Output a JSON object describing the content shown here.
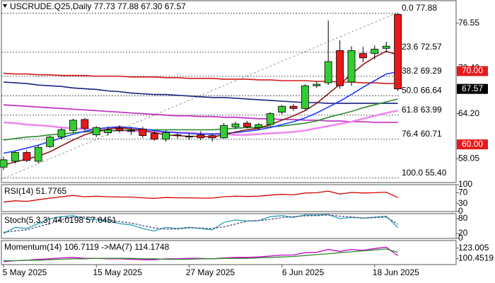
{
  "chart_data": [
    {
      "type": "candlestick",
      "title": "USCRUDE.Q25,Daily  77.73 77.88 67.30 67.57",
      "categories": [
        "5 May 2025",
        null,
        null,
        null,
        null,
        null,
        null,
        null,
        "15 May 2025",
        null,
        null,
        null,
        null,
        null,
        null,
        null,
        "27 May 2025",
        null,
        null,
        null,
        null,
        null,
        null,
        null,
        "6 Jun 2025",
        null,
        null,
        null,
        null,
        null,
        null,
        null,
        "18 Jun 2025",
        null,
        null
      ],
      "open": [
        56.9,
        57.7,
        58.9,
        57.7,
        59.7,
        61.0,
        61.9,
        63.4,
        61.3,
        61.6,
        62.2,
        61.8,
        62.1,
        61.5,
        60.7,
        61.3,
        61.0,
        61.3,
        61.2,
        60.9,
        62.4,
        62.9,
        62.3,
        62.7,
        64.4,
        65.2,
        64.9,
        68.0,
        68.4,
        72.8,
        68.5,
        72.4,
        72.4,
        73.1,
        77.73
      ],
      "high": [
        58.3,
        59.1,
        59.2,
        59.9,
        61.2,
        62.3,
        63.5,
        63.6,
        62.5,
        62.4,
        62.6,
        62.3,
        62.4,
        61.8,
        61.9,
        61.6,
        61.5,
        61.8,
        61.5,
        62.9,
        63.1,
        63.2,
        62.9,
        64.4,
        65.4,
        65.5,
        68.2,
        68.6,
        76.9,
        74.2,
        73.4,
        73.3,
        73.5,
        74.0,
        77.88
      ],
      "low": [
        56.5,
        57.4,
        57.6,
        57.4,
        59.5,
        60.7,
        61.6,
        61.9,
        61.0,
        61.2,
        61.6,
        61.3,
        60.9,
        60.5,
        60.4,
        60.8,
        60.6,
        60.6,
        60.4,
        60.8,
        62.1,
        62.2,
        62.0,
        62.5,
        64.1,
        64.6,
        64.7,
        67.7,
        68.1,
        67.6,
        68.0,
        71.2,
        71.6,
        72.6,
        67.3
      ],
      "close": [
        57.9,
        58.9,
        57.8,
        59.6,
        61.0,
        62.0,
        63.3,
        62.2,
        62.3,
        62.0,
        61.9,
        61.9,
        61.2,
        60.7,
        61.6,
        61.2,
        61.1,
        60.9,
        60.9,
        62.6,
        62.8,
        62.4,
        62.7,
        64.2,
        65.2,
        64.9,
        68.0,
        68.2,
        71.3,
        68.0,
        72.8,
        71.8,
        73.0,
        73.4,
        67.57
      ],
      "up_color": "#33cc33",
      "down_color": "#e8191b",
      "overlays": [
        {
          "color": "#d21a1a",
          "width": 1.6,
          "values": [
            69.7,
            69.6,
            69.6,
            69.5,
            69.5,
            69.4,
            69.4,
            69.4,
            69.3,
            69.3,
            69.3,
            69.2,
            69.2,
            69.2,
            69.1,
            69.1,
            69.0,
            69.0,
            69.0,
            68.9,
            68.9,
            68.9,
            68.8,
            68.8,
            68.7,
            68.7,
            68.7,
            68.6,
            68.6,
            68.5,
            68.5,
            68.4,
            68.4,
            68.3,
            68.3
          ]
        },
        {
          "color": "#1a237e",
          "width": 1.6,
          "values": [
            68.5,
            68.4,
            68.3,
            68.1,
            68.0,
            67.9,
            67.7,
            67.6,
            67.5,
            67.3,
            67.2,
            67.0,
            66.9,
            66.8,
            66.8,
            66.7,
            66.6,
            66.5,
            66.4,
            66.4,
            66.3,
            66.2,
            66.1,
            66.0,
            65.9,
            65.8,
            65.7,
            65.7,
            65.6,
            65.6,
            65.6,
            65.6,
            65.6,
            65.6,
            65.6
          ]
        },
        {
          "color": "#c23cc2",
          "width": 1.8,
          "values": [
            65.4,
            65.3,
            65.2,
            65.1,
            65.0,
            64.9,
            64.8,
            64.7,
            64.6,
            64.5,
            64.4,
            64.3,
            64.2,
            64.1,
            64.0,
            63.9,
            63.9,
            63.8,
            63.8,
            63.7,
            63.7,
            63.6,
            63.5,
            63.5,
            63.4,
            63.4,
            63.3,
            63.3,
            63.2,
            63.2,
            63.1,
            63.1,
            63.0,
            63.0,
            63.0
          ]
        },
        {
          "color": "#ee88ee",
          "width": 2.6,
          "values": [
            63.0,
            62.9,
            62.7,
            62.6,
            62.5,
            62.3,
            62.2,
            62.1,
            62.0,
            61.9,
            61.9,
            61.8,
            61.8,
            61.7,
            61.7,
            61.6,
            61.6,
            61.5,
            61.4,
            61.4,
            61.3,
            61.3,
            61.4,
            61.5,
            61.6,
            61.7,
            61.9,
            62.2,
            62.5,
            62.8,
            63.1,
            63.5,
            63.9,
            64.3,
            64.6
          ]
        },
        {
          "color": "#2e8b2e",
          "width": 1.6,
          "values": [
            60.6,
            60.8,
            61.0,
            61.1,
            61.3,
            61.4,
            61.6,
            61.7,
            61.8,
            61.9,
            61.9,
            62.0,
            62.0,
            62.0,
            62.0,
            62.0,
            62.0,
            62.0,
            62.0,
            62.1,
            62.2,
            62.3,
            62.3,
            62.4,
            62.5,
            62.7,
            62.9,
            63.2,
            63.7,
            64.1,
            64.5,
            65.0,
            65.4,
            65.8,
            66.2
          ]
        },
        {
          "color": "#1e3cff",
          "width": 1.6,
          "values": [
            58.8,
            59.1,
            59.5,
            59.9,
            60.4,
            60.9,
            61.4,
            61.8,
            62.1,
            62.3,
            62.4,
            62.3,
            62.1,
            61.9,
            61.7,
            61.6,
            61.5,
            61.4,
            61.4,
            61.5,
            61.6,
            61.8,
            62.0,
            62.3,
            62.7,
            63.1,
            63.6,
            64.3,
            65.1,
            65.9,
            66.8,
            67.8,
            68.7,
            69.6,
            69.9
          ]
        },
        {
          "color": "#8b1a1a",
          "width": 1.6,
          "values": [
            57.2,
            57.6,
            58.0,
            58.4,
            59.0,
            59.8,
            60.6,
            61.3,
            61.8,
            62.1,
            62.3,
            62.1,
            61.9,
            61.6,
            61.3,
            61.2,
            61.1,
            61.1,
            61.0,
            61.3,
            61.7,
            62.0,
            62.2,
            62.7,
            63.3,
            63.9,
            64.6,
            65.6,
            66.9,
            68.2,
            69.6,
            70.9,
            71.9,
            72.7,
            72.2
          ]
        }
      ],
      "fib_levels": [
        {
          "ratio": "0.0",
          "price": 77.88
        },
        {
          "ratio": "23.6",
          "price": 72.57
        },
        {
          "ratio": "38.2",
          "price": 69.29
        },
        {
          "ratio": "50.0",
          "price": 66.64
        },
        {
          "ratio": "61.8",
          "price": 63.99
        },
        {
          "ratio": "76.4",
          "price": 60.71
        },
        {
          "ratio": "100.0",
          "price": {
            "value": 55.4,
            "label": "55.40"
          }
        }
      ],
      "price_tags": [
        {
          "price": {
            "value": 70,
            "label": "70.00"
          },
          "color": "#e8191b"
        },
        {
          "price": 67.57,
          "color": "#000000"
        },
        {
          "price": {
            "value": 60,
            "label": "60.00"
          },
          "color": "#e8191b"
        }
      ],
      "ylim": [
        54.8,
        79.6
      ],
      "yticks": [
        76.55,
        {
          "value": 70.4,
          "label": "70.40"
        },
        {
          "value": 64.2,
          "label": "64.20"
        },
        58.05
      ]
    },
    {
      "type": "line",
      "title": "RSI(14) 51.7765",
      "ylim": [
        0,
        100
      ],
      "yticks": [
        100,
        70,
        30,
        0
      ],
      "series": [
        {
          "color": "#d40000",
          "dashed": false,
          "values": [
            35,
            40,
            38,
            44,
            50,
            55,
            60,
            55,
            57,
            55,
            54,
            54,
            51,
            49,
            52,
            51,
            51,
            50,
            50,
            55,
            57,
            56,
            57,
            61,
            64,
            62,
            69,
            70,
            76,
            65,
            71,
            69,
            70,
            72,
            51.7765
          ]
        }
      ]
    },
    {
      "type": "line",
      "title": "Stoch(5,3,3) 44.0198 57.6451",
      "ylim": [
        0,
        100
      ],
      "yticks": [
        80,
        20,
        0
      ],
      "series": [
        {
          "color": "#2aa0b8",
          "dashed": false,
          "values": [
            20,
            45,
            40,
            60,
            80,
            88,
            92,
            80,
            75,
            70,
            60,
            55,
            40,
            30,
            45,
            40,
            45,
            40,
            35,
            65,
            75,
            70,
            72,
            88,
            92,
            85,
            95,
            95,
            96,
            80,
            85,
            82,
            86,
            90,
            44.0198
          ]
        },
        {
          "color": "#4a4a7a",
          "dashed": true,
          "values": [
            25,
            30,
            35,
            48,
            60,
            76,
            87,
            87,
            82,
            75,
            68,
            62,
            52,
            42,
            38,
            38,
            43,
            42,
            40,
            47,
            58,
            70,
            72,
            77,
            84,
            88,
            91,
            92,
            95,
            90,
            87,
            82,
            84,
            86,
            57.6451
          ]
        }
      ]
    },
    {
      "type": "line",
      "title": "Momentum(14) 106.7119   ->MA(7) 114.1748",
      "ylim": [
        87.6,
        139.1
      ],
      "yticks": [
        123.005,
        100.4519
      ],
      "series": [
        {
          "color": "#c800c8",
          "dashed": false,
          "values": [
            94,
            96,
            97,
            99,
            100,
            102,
            103,
            101,
            101,
            100,
            100,
            99,
            98,
            98,
            100,
            100,
            101,
            101,
            100,
            102,
            103,
            103,
            104,
            106,
            108,
            108,
            113,
            114,
            120,
            116,
            120,
            118,
            122,
            125,
            106.7119
          ]
        },
        {
          "color": "#2e8b2e",
          "dashed": false,
          "values": [
            96,
            96,
            97,
            97,
            98,
            99,
            100,
            100,
            101,
            101,
            101,
            101,
            100,
            100,
            99,
            99,
            99,
            100,
            100,
            101,
            101,
            101,
            102,
            103,
            104,
            105,
            107,
            109,
            111,
            113,
            115,
            117,
            119,
            121,
            114.1748
          ]
        }
      ]
    }
  ]
}
